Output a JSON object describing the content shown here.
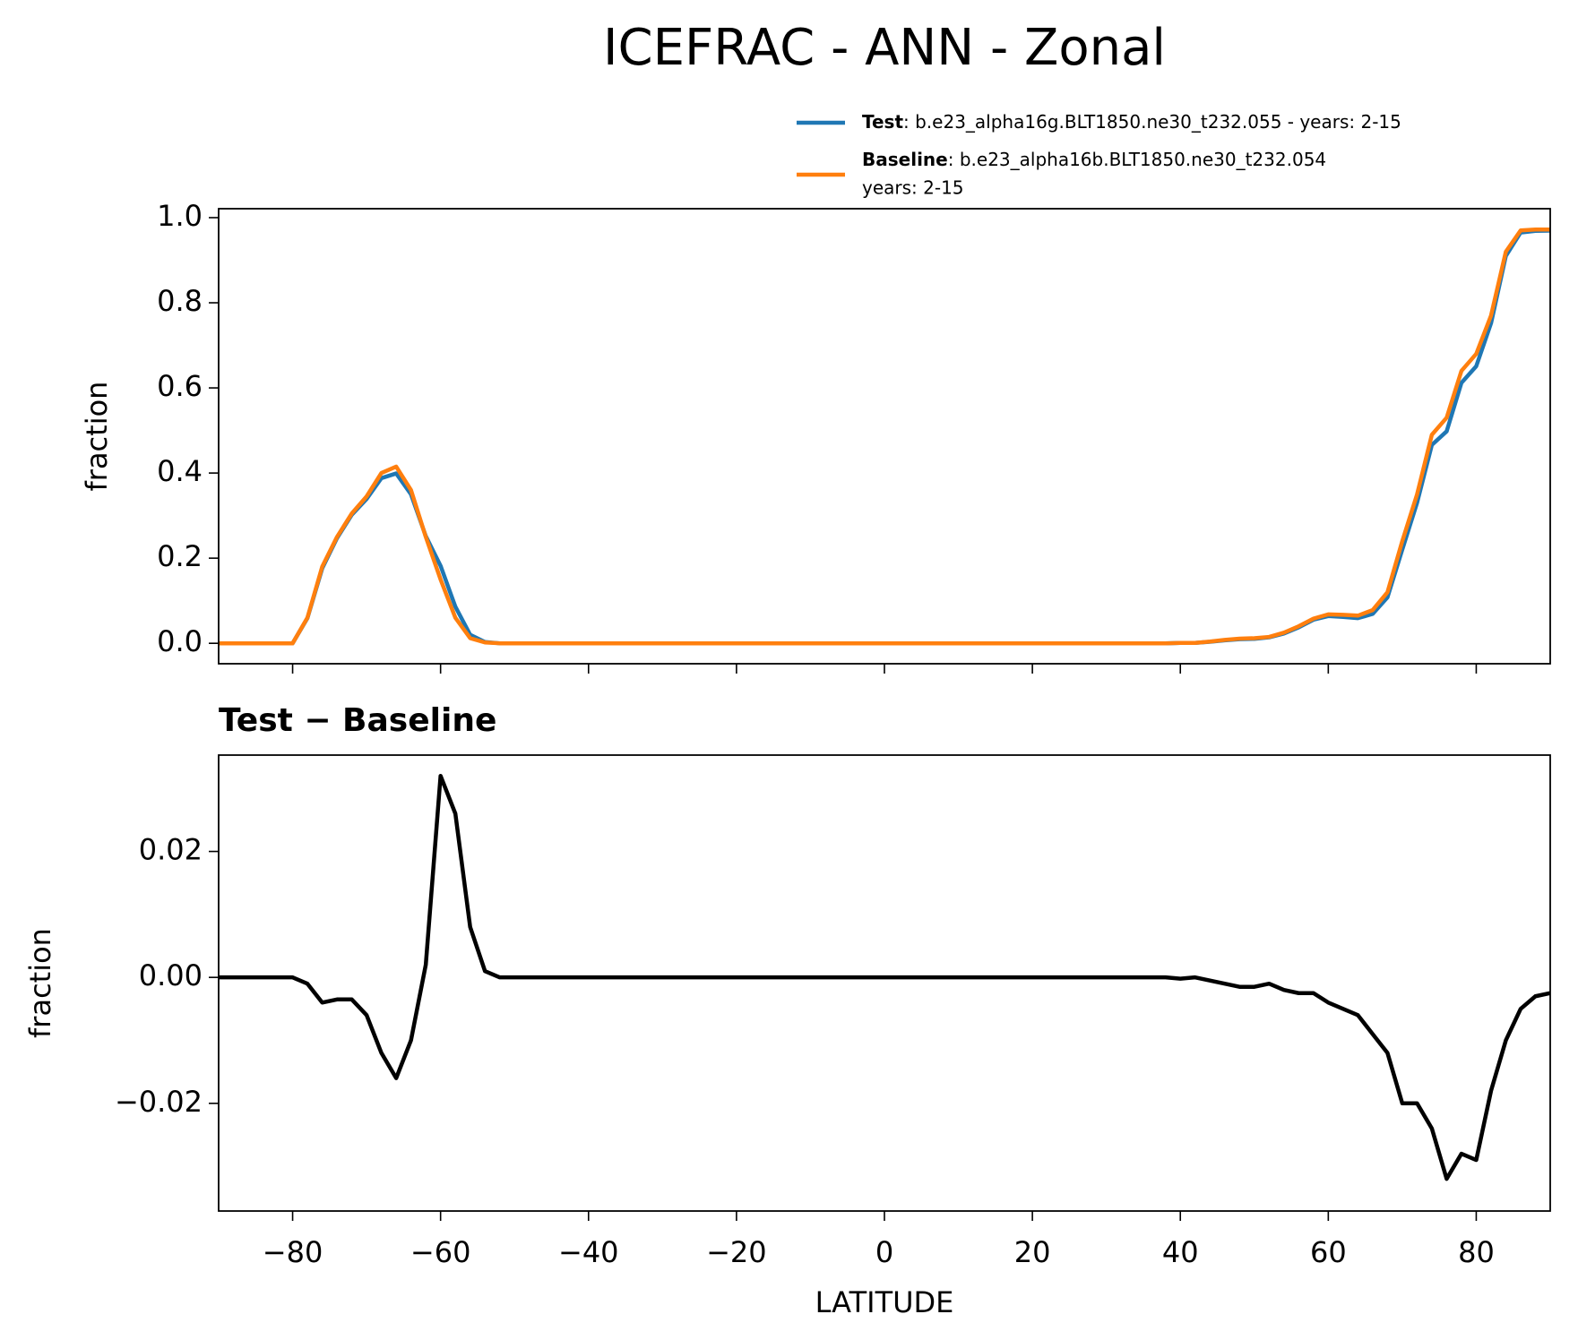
{
  "chart_data": [
    {
      "type": "line",
      "title": "ICEFRAC - ANN - Zonal",
      "ylabel": "fraction",
      "x": [
        -90,
        -88,
        -86,
        -84,
        -82,
        -80,
        -78,
        -76,
        -74,
        -72,
        -70,
        -68,
        -66,
        -64,
        -62,
        -60,
        -58,
        -56,
        -54,
        -52,
        -50,
        -48,
        -46,
        -44,
        -42,
        -40,
        -38,
        -36,
        -34,
        -32,
        -30,
        -28,
        -26,
        -24,
        -22,
        -20,
        -18,
        -16,
        -14,
        -12,
        -10,
        -8,
        -6,
        -4,
        -2,
        0,
        2,
        4,
        6,
        8,
        10,
        12,
        14,
        16,
        18,
        20,
        22,
        24,
        26,
        28,
        30,
        32,
        34,
        36,
        38,
        40,
        42,
        44,
        46,
        48,
        50,
        52,
        54,
        56,
        58,
        60,
        62,
        64,
        66,
        68,
        70,
        72,
        74,
        76,
        78,
        80,
        82,
        84,
        86,
        88,
        90
      ],
      "series": [
        {
          "name": "Test",
          "description": [
            ": b.e23_alpha16g.BLT1850.ne30_t232.055 - years: 2-15"
          ],
          "color": "#1f77b4",
          "values": [
            0,
            0,
            0,
            0,
            0,
            0,
            0.059,
            0.176,
            0.247,
            0.302,
            0.339,
            0.388,
            0.399,
            0.35,
            0.252,
            0.182,
            0.086,
            0.02,
            0.003,
            0,
            0,
            0,
            0,
            0,
            0,
            0,
            0,
            0,
            0,
            0,
            0,
            0,
            0,
            0,
            0,
            0,
            0,
            0,
            0,
            0,
            0,
            0,
            0,
            0,
            0,
            0,
            0,
            0,
            0,
            0,
            0,
            0,
            0,
            0,
            0,
            0,
            0,
            0,
            0,
            0,
            0,
            0,
            0,
            0,
            0,
            0.001,
            0.001,
            0.0035,
            0.007,
            0.0095,
            0.0105,
            0.014,
            0.023,
            0.0375,
            0.0555,
            0.064,
            0.062,
            0.059,
            0.069,
            0.108,
            0.22,
            0.33,
            0.466,
            0.498,
            0.612,
            0.651,
            0.752,
            0.91,
            0.965,
            0.969,
            0.9695
          ]
        },
        {
          "name": "Baseline",
          "description": [
            ": b.e23_alpha16b.BLT1850.ne30_t232.054",
            "years: 2-15"
          ],
          "color": "#ff7f0e",
          "values": [
            0,
            0,
            0,
            0,
            0,
            0,
            0.06,
            0.18,
            0.25,
            0.305,
            0.345,
            0.4,
            0.415,
            0.36,
            0.25,
            0.15,
            0.06,
            0.012,
            0.002,
            0,
            0,
            0,
            0,
            0,
            0,
            0,
            0,
            0,
            0,
            0,
            0,
            0,
            0,
            0,
            0,
            0,
            0,
            0,
            0,
            0,
            0,
            0,
            0,
            0,
            0,
            0,
            0,
            0,
            0,
            0,
            0,
            0,
            0,
            0,
            0,
            0,
            0,
            0,
            0,
            0,
            0,
            0,
            0,
            0,
            0,
            0.001,
            0.001,
            0.004,
            0.008,
            0.011,
            0.012,
            0.015,
            0.025,
            0.04,
            0.058,
            0.068,
            0.067,
            0.065,
            0.078,
            0.12,
            0.24,
            0.35,
            0.49,
            0.53,
            0.64,
            0.68,
            0.77,
            0.92,
            0.97,
            0.972,
            0.972
          ]
        }
      ],
      "xlim": [
        -90,
        90
      ],
      "xticks": [
        -80,
        -60,
        -40,
        -20,
        0,
        20,
        40,
        60,
        80
      ],
      "ylim": [
        -0.048,
        1.021
      ],
      "yticks": [
        {
          "value": 0,
          "label": "0.0"
        },
        0.2,
        0.4,
        0.6,
        0.8,
        {
          "value": 1,
          "label": "1.0"
        }
      ]
    },
    {
      "type": "line",
      "title": "Test − Baseline",
      "ylabel": "fraction",
      "xlabel": "LATITUDE",
      "x": [
        -90,
        -88,
        -86,
        -84,
        -82,
        -80,
        -78,
        -76,
        -74,
        -72,
        -70,
        -68,
        -66,
        -64,
        -62,
        -60,
        -58,
        -56,
        -54,
        -52,
        -50,
        -48,
        -46,
        -44,
        -42,
        -40,
        -38,
        -36,
        -34,
        -32,
        -30,
        -28,
        -26,
        -24,
        -22,
        -20,
        -18,
        -16,
        -14,
        -12,
        -10,
        -8,
        -6,
        -4,
        -2,
        0,
        2,
        4,
        6,
        8,
        10,
        12,
        14,
        16,
        18,
        20,
        22,
        24,
        26,
        28,
        30,
        32,
        34,
        36,
        38,
        40,
        42,
        44,
        46,
        48,
        50,
        52,
        54,
        56,
        58,
        60,
        62,
        64,
        66,
        68,
        70,
        72,
        74,
        76,
        78,
        80,
        82,
        84,
        86,
        88,
        90
      ],
      "series": [
        {
          "color": "#000000",
          "values": [
            0,
            0,
            0,
            0,
            0,
            0,
            -0.001,
            -0.004,
            -0.0035,
            -0.0035,
            -0.006,
            -0.012,
            -0.016,
            -0.01,
            0.002,
            0.032,
            0.026,
            0.008,
            0.001,
            0,
            0,
            0,
            0,
            0,
            0,
            0,
            0,
            0,
            0,
            0,
            0,
            0,
            0,
            0,
            0,
            0,
            0,
            0,
            0,
            0,
            0,
            0,
            0,
            0,
            0,
            0,
            0,
            0,
            0,
            0,
            0,
            0,
            0,
            0,
            0,
            0,
            0,
            0,
            0,
            0,
            0,
            0,
            0,
            0,
            0,
            -0.0002,
            0,
            -0.0005,
            -0.001,
            -0.0015,
            -0.0015,
            -0.001,
            -0.002,
            -0.0025,
            -0.0025,
            -0.004,
            -0.005,
            -0.006,
            -0.009,
            -0.012,
            -0.02,
            -0.02,
            -0.024,
            -0.032,
            -0.028,
            -0.029,
            -0.018,
            -0.01,
            -0.005,
            -0.003,
            -0.0025
          ]
        }
      ],
      "xlim": [
        -90,
        90
      ],
      "xticks": [
        {
          "value": -80,
          "label": "−80"
        },
        {
          "value": -60,
          "label": "−60"
        },
        {
          "value": -40,
          "label": "−40"
        },
        {
          "value": -20,
          "label": "−20"
        },
        0,
        20,
        40,
        60,
        80
      ],
      "ylim": [
        -0.0371,
        0.0353
      ],
      "yticks": [
        {
          "value": -0.02,
          "label": "−0.02"
        },
        {
          "value": 0,
          "label": "0.00"
        },
        0.02
      ]
    }
  ]
}
